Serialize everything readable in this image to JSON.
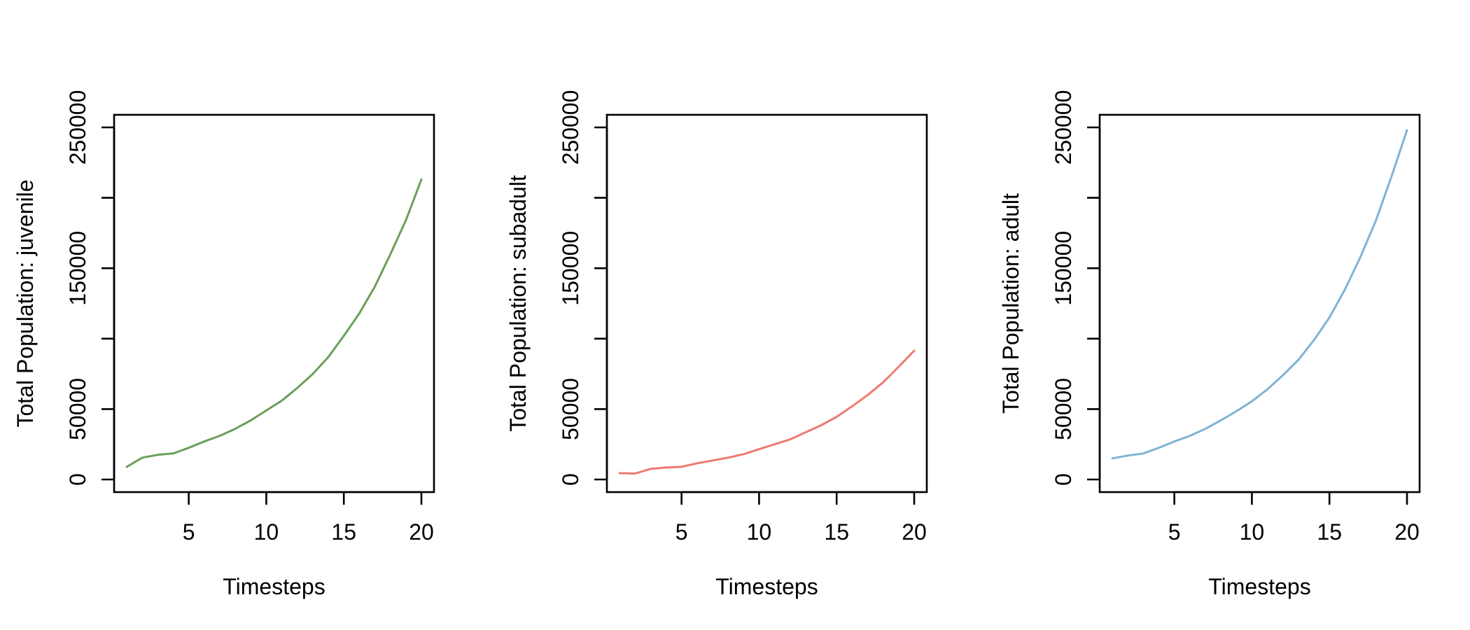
{
  "chart_data": [
    {
      "type": "line",
      "title": "",
      "xlabel": "Timesteps",
      "ylabel": "Total Population:  juvenile",
      "x": [
        1,
        2,
        3,
        4,
        5,
        6,
        7,
        8,
        9,
        10,
        11,
        12,
        13,
        14,
        15,
        16,
        17,
        18,
        19,
        20
      ],
      "series": [
        {
          "values": [
            9000,
            15500,
            17500,
            18500,
            22500,
            27000,
            31000,
            36000,
            42000,
            49000,
            56000,
            65000,
            75000,
            87000,
            102000,
            118000,
            137000,
            160000,
            184000,
            213000
          ],
          "color": "#6a9f5b"
        }
      ],
      "xticks": [
        5,
        10,
        15,
        20
      ],
      "xtick_labels": [
        "5",
        "10",
        "15",
        "20"
      ],
      "yticks": [
        0,
        50000,
        100000,
        150000,
        200000,
        250000
      ],
      "ytick_labels": [
        "0",
        "50000",
        "",
        "150000",
        "",
        "250000"
      ],
      "xlim": [
        1,
        20
      ],
      "ylim": [
        0,
        250000
      ],
      "grid": false
    },
    {
      "type": "line",
      "title": "",
      "xlabel": "Timesteps",
      "ylabel": "Total Population:  subadult",
      "x": [
        1,
        2,
        3,
        4,
        5,
        6,
        7,
        8,
        9,
        10,
        11,
        12,
        13,
        14,
        15,
        16,
        17,
        18,
        19,
        20
      ],
      "series": [
        {
          "values": [
            4500,
            4200,
            7500,
            8500,
            9000,
            11500,
            13500,
            15500,
            18000,
            21500,
            25000,
            28500,
            33500,
            38500,
            44500,
            52000,
            60000,
            69000,
            80000,
            91500
          ],
          "color": "#ee7a6e"
        }
      ],
      "xticks": [
        5,
        10,
        15,
        20
      ],
      "xtick_labels": [
        "5",
        "10",
        "15",
        "20"
      ],
      "yticks": [
        0,
        50000,
        100000,
        150000,
        200000,
        250000
      ],
      "ytick_labels": [
        "0",
        "50000",
        "",
        "150000",
        "",
        "250000"
      ],
      "xlim": [
        1,
        20
      ],
      "ylim": [
        0,
        250000
      ],
      "grid": false
    },
    {
      "type": "line",
      "title": "",
      "xlabel": "Timesteps",
      "ylabel": "Total Population:  adult",
      "x": [
        1,
        2,
        3,
        4,
        5,
        6,
        7,
        8,
        9,
        10,
        11,
        12,
        13,
        14,
        15,
        16,
        17,
        18,
        19,
        20
      ],
      "series": [
        {
          "values": [
            15000,
            17000,
            18500,
            22500,
            27000,
            31000,
            36000,
            42000,
            48500,
            55500,
            64000,
            74000,
            85000,
            99000,
            115000,
            135000,
            158000,
            184000,
            215000,
            248000
          ],
          "color": "#7fb3d5"
        }
      ],
      "xticks": [
        5,
        10,
        15,
        20
      ],
      "xtick_labels": [
        "5",
        "10",
        "15",
        "20"
      ],
      "yticks": [
        0,
        50000,
        100000,
        150000,
        200000,
        250000
      ],
      "ytick_labels": [
        "0",
        "50000",
        "",
        "150000",
        "",
        "250000"
      ],
      "xlim": [
        1,
        20
      ],
      "ylim": [
        0,
        250000
      ],
      "grid": false
    }
  ]
}
